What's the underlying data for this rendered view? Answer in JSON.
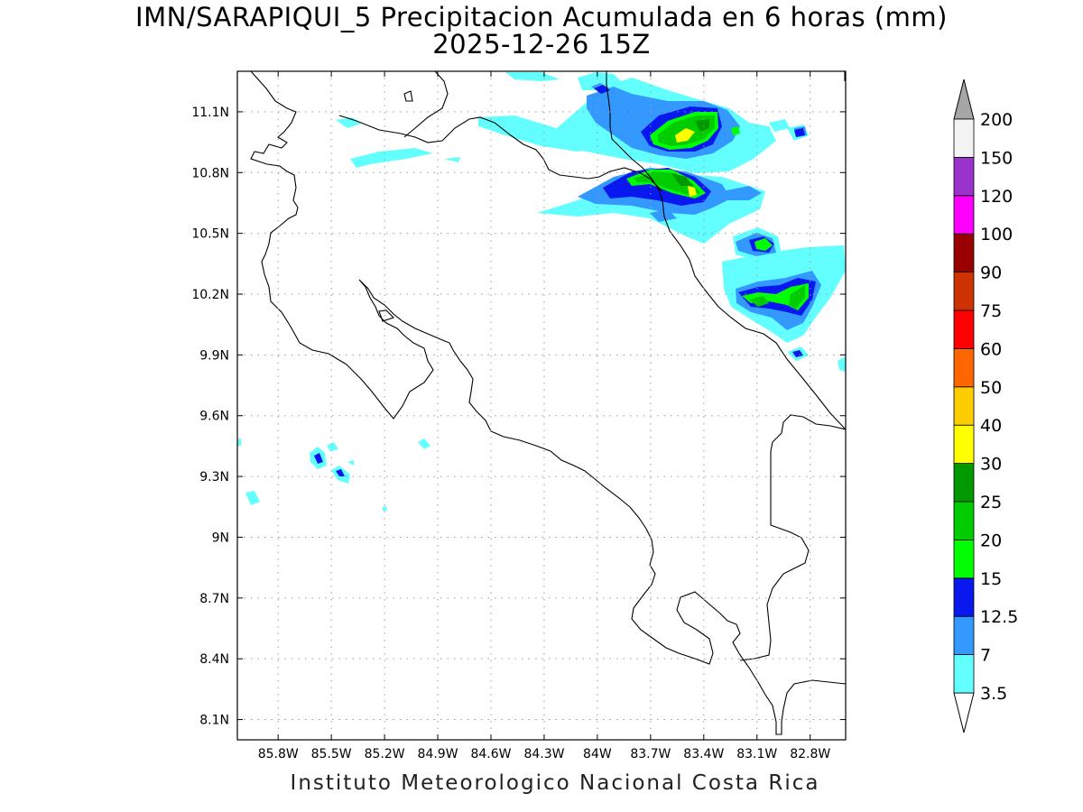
{
  "title": {
    "line1": "IMN/SARAPIQUI_5 Precipitacion Acumulada en 6 horas (mm)",
    "line2": "2025-12-26 15Z"
  },
  "credit": "Instituto Meteorologico Nacional Costa Rica",
  "map": {
    "lon_range": [
      -86.03,
      -82.6
    ],
    "lat_range": [
      8.0,
      11.3
    ],
    "x_ticks": [
      {
        "lon": -85.8,
        "label": "85.8W"
      },
      {
        "lon": -85.5,
        "label": "85.5W"
      },
      {
        "lon": -85.2,
        "label": "85.2W"
      },
      {
        "lon": -84.9,
        "label": "84.9W"
      },
      {
        "lon": -84.6,
        "label": "84.6W"
      },
      {
        "lon": -84.3,
        "label": "84.3W"
      },
      {
        "lon": -84.0,
        "label": "84W"
      },
      {
        "lon": -83.7,
        "label": "83.7W"
      },
      {
        "lon": -83.4,
        "label": "83.4W"
      },
      {
        "lon": -83.1,
        "label": "83.1W"
      },
      {
        "lon": -82.8,
        "label": "82.8W"
      }
    ],
    "y_ticks": [
      {
        "lat": 11.1,
        "label": "11.1N"
      },
      {
        "lat": 10.8,
        "label": "10.8N"
      },
      {
        "lat": 10.5,
        "label": "10.5N"
      },
      {
        "lat": 10.2,
        "label": "10.2N"
      },
      {
        "lat": 9.9,
        "label": "9.9N"
      },
      {
        "lat": 9.6,
        "label": "9.6N"
      },
      {
        "lat": 9.3,
        "label": "9.3N"
      },
      {
        "lat": 9.0,
        "label": "9N"
      },
      {
        "lat": 8.7,
        "label": "8.7N"
      },
      {
        "lat": 8.4,
        "label": "8.4N"
      },
      {
        "lat": 8.1,
        "label": "8.1N"
      }
    ],
    "grid": true
  },
  "colorbar": {
    "levels": [
      "3.5",
      "7",
      "12.5",
      "15",
      "20",
      "25",
      "30",
      "40",
      "50",
      "60",
      "75",
      "90",
      "100",
      "120",
      "150",
      "200"
    ],
    "colors": [
      "#63ffff",
      "#3399ff",
      "#0a18f0",
      "#00ff00",
      "#00cc00",
      "#009900",
      "#ffff00",
      "#ffcc00",
      "#ff6600",
      "#ff0000",
      "#cc3300",
      "#990000",
      "#ff00ff",
      "#9933cc",
      "#f4f4f4"
    ],
    "under_color": "#ffffff",
    "over_color": "#a6a6a6"
  }
}
